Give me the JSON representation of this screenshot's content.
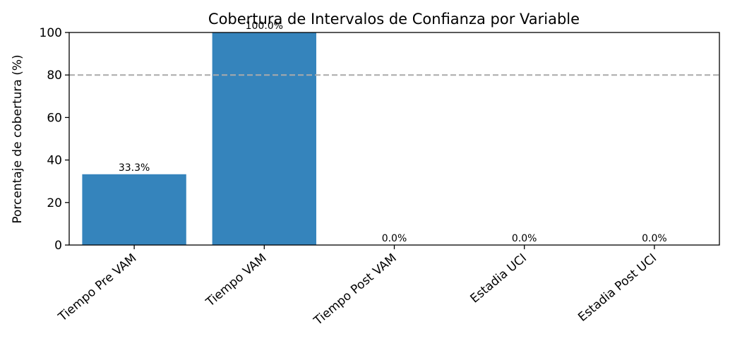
{
  "chart_data": {
    "type": "bar",
    "title": "Cobertura de Intervalos de Confianza por Variable",
    "xlabel": "",
    "ylabel": "Porcentaje de cobertura (%)",
    "categories": [
      "Tiempo Pre VAM",
      "Tiempo VAM",
      "Tiempo Post VAM",
      "Estadia UCI",
      "Estadia Post UCI"
    ],
    "values": [
      33.3,
      100.0,
      0.0,
      0.0,
      0.0
    ],
    "data_labels": [
      "33.3%",
      "100.0%",
      "0.0%",
      "0.0%",
      "0.0%"
    ],
    "ylim": [
      0,
      100
    ],
    "yticks": [
      0,
      20,
      40,
      60,
      80,
      100
    ],
    "reference_line": {
      "y": 80,
      "style": "dashed",
      "color": "#aaaaaa"
    },
    "bar_color": "#3584bc",
    "grid": false,
    "legend": "none"
  }
}
